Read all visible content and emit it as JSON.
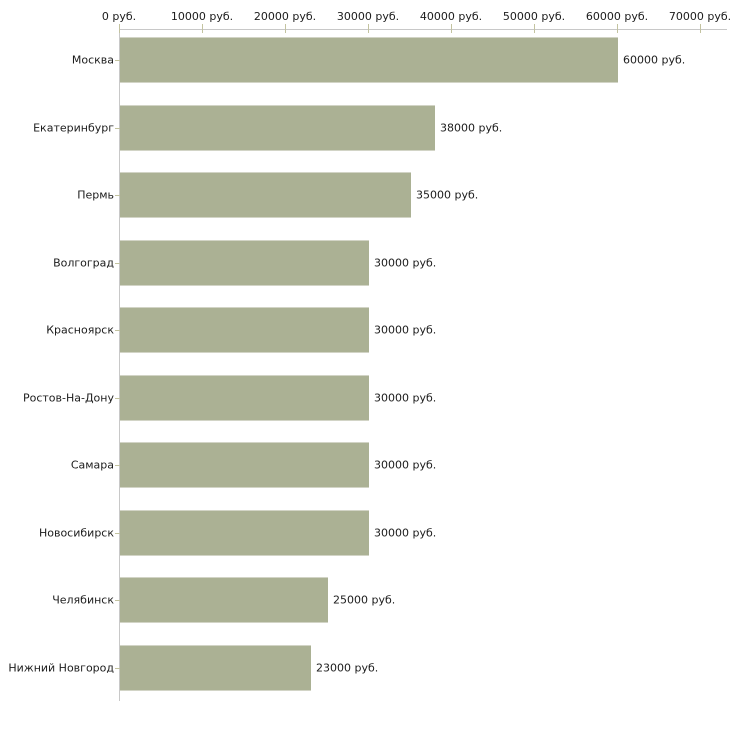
{
  "chart_data": {
    "type": "bar",
    "orientation": "horizontal",
    "title": "",
    "unit": "руб.",
    "categories": [
      "Москва",
      "Екатеринбург",
      "Пермь",
      "Волгоград",
      "Красноярск",
      "Ростов-На-Дону",
      "Самара",
      "Новосибирск",
      "Челябинск",
      "Нижний Новгород"
    ],
    "values": [
      60000,
      38000,
      35000,
      30000,
      30000,
      30000,
      30000,
      30000,
      25000,
      23000
    ],
    "value_labels": [
      "60000 руб.",
      "38000 руб.",
      "35000 руб.",
      "30000 руб.",
      "30000 руб.",
      "30000 руб.",
      "30000 руб.",
      "30000 руб.",
      "25000 руб.",
      "23000 руб."
    ],
    "x_axis": {
      "position": "top",
      "min": 0,
      "max": 70000,
      "ticks": [
        0,
        10000,
        20000,
        30000,
        40000,
        50000,
        60000,
        70000
      ],
      "tick_labels": [
        "0 руб.",
        "10000 руб.",
        "20000 руб.",
        "30000 руб.",
        "40000 руб.",
        "50000 руб.",
        "60000 руб.",
        "70000 руб."
      ]
    },
    "grid": false,
    "legend": false,
    "colors": {
      "bar_fill": "#abb194",
      "bar_edge": "#d2d4c6",
      "axis_line": "#c8c8c8",
      "tick_mark": "#c3c3a0",
      "text": "#1c1c1c",
      "background": "#ffffff"
    }
  }
}
